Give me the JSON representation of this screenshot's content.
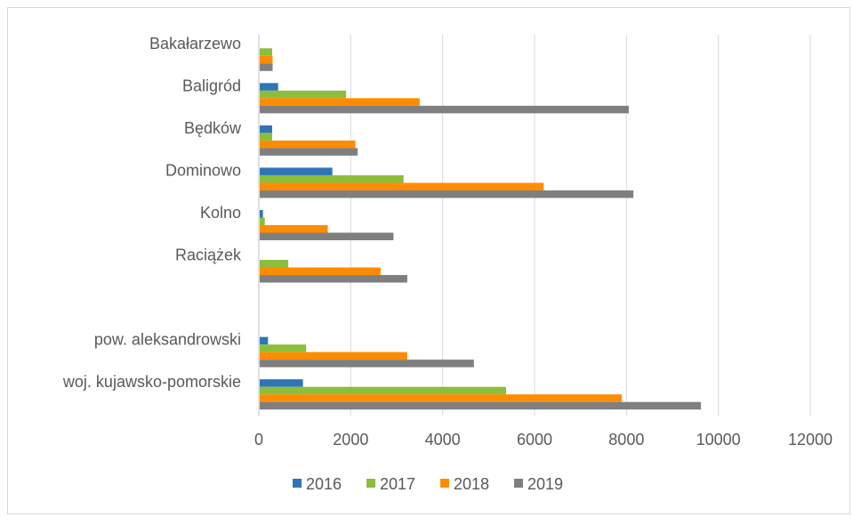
{
  "chart_data": {
    "type": "bar",
    "orientation": "horizontal",
    "categories": [
      "Bakałarzewo",
      "Baligród",
      "Będków",
      "Dominowo",
      "Kolno",
      "Raciążek",
      "",
      "pow. aleksandrowski",
      "woj. kujawsko-pomorskie"
    ],
    "series": [
      {
        "name": "2016",
        "color": "#2e75b6",
        "values": [
          0,
          420,
          290,
          1600,
          90,
          0,
          null,
          200,
          960
        ]
      },
      {
        "name": "2017",
        "color": "#8bbe3a",
        "values": [
          290,
          1900,
          290,
          3150,
          130,
          640,
          null,
          1030,
          5380
        ]
      },
      {
        "name": "2018",
        "color": "#ff8c00",
        "values": [
          300,
          3500,
          2100,
          6200,
          1500,
          2650,
          null,
          3230,
          7900
        ]
      },
      {
        "name": "2019",
        "color": "#7f7f7f",
        "values": [
          300,
          8050,
          2150,
          8150,
          2930,
          3230,
          null,
          4680,
          9620
        ]
      }
    ],
    "xlim": [
      0,
      12000
    ],
    "xticks": [
      "0",
      "2000",
      "4000",
      "6000",
      "8000",
      "10000",
      "12000"
    ],
    "grid": true,
    "legend": "bottom",
    "title": "",
    "xlabel": "",
    "ylabel": ""
  }
}
